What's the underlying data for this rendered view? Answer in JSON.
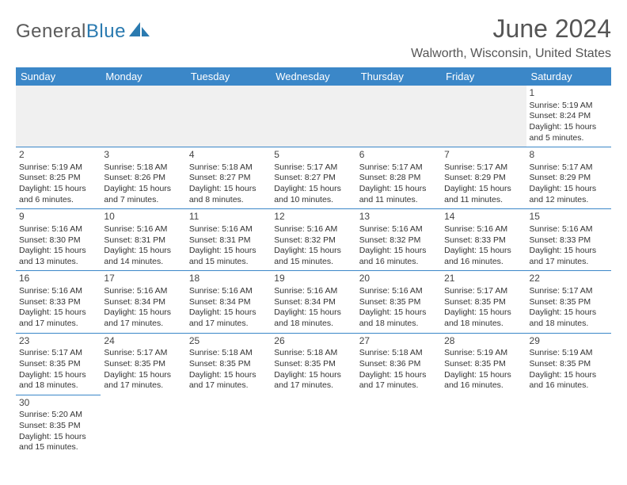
{
  "logo": {
    "text_a": "General",
    "text_b": "Blue",
    "icon_color": "#2a7ab0"
  },
  "header": {
    "title": "June 2024",
    "location": "Walworth, Wisconsin, United States",
    "title_color": "#555555",
    "title_fontsize": 32
  },
  "calendar": {
    "header_bg": "#3b87c8",
    "header_fg": "#ffffff",
    "border_color": "#3b87c8",
    "day_names": [
      "Sunday",
      "Monday",
      "Tuesday",
      "Wednesday",
      "Thursday",
      "Friday",
      "Saturday"
    ],
    "weeks": [
      [
        null,
        null,
        null,
        null,
        null,
        null,
        {
          "n": "1",
          "sr": "Sunrise: 5:19 AM",
          "ss": "Sunset: 8:24 PM",
          "dl1": "Daylight: 15 hours",
          "dl2": "and 5 minutes."
        }
      ],
      [
        {
          "n": "2",
          "sr": "Sunrise: 5:19 AM",
          "ss": "Sunset: 8:25 PM",
          "dl1": "Daylight: 15 hours",
          "dl2": "and 6 minutes."
        },
        {
          "n": "3",
          "sr": "Sunrise: 5:18 AM",
          "ss": "Sunset: 8:26 PM",
          "dl1": "Daylight: 15 hours",
          "dl2": "and 7 minutes."
        },
        {
          "n": "4",
          "sr": "Sunrise: 5:18 AM",
          "ss": "Sunset: 8:27 PM",
          "dl1": "Daylight: 15 hours",
          "dl2": "and 8 minutes."
        },
        {
          "n": "5",
          "sr": "Sunrise: 5:17 AM",
          "ss": "Sunset: 8:27 PM",
          "dl1": "Daylight: 15 hours",
          "dl2": "and 10 minutes."
        },
        {
          "n": "6",
          "sr": "Sunrise: 5:17 AM",
          "ss": "Sunset: 8:28 PM",
          "dl1": "Daylight: 15 hours",
          "dl2": "and 11 minutes."
        },
        {
          "n": "7",
          "sr": "Sunrise: 5:17 AM",
          "ss": "Sunset: 8:29 PM",
          "dl1": "Daylight: 15 hours",
          "dl2": "and 11 minutes."
        },
        {
          "n": "8",
          "sr": "Sunrise: 5:17 AM",
          "ss": "Sunset: 8:29 PM",
          "dl1": "Daylight: 15 hours",
          "dl2": "and 12 minutes."
        }
      ],
      [
        {
          "n": "9",
          "sr": "Sunrise: 5:16 AM",
          "ss": "Sunset: 8:30 PM",
          "dl1": "Daylight: 15 hours",
          "dl2": "and 13 minutes."
        },
        {
          "n": "10",
          "sr": "Sunrise: 5:16 AM",
          "ss": "Sunset: 8:31 PM",
          "dl1": "Daylight: 15 hours",
          "dl2": "and 14 minutes."
        },
        {
          "n": "11",
          "sr": "Sunrise: 5:16 AM",
          "ss": "Sunset: 8:31 PM",
          "dl1": "Daylight: 15 hours",
          "dl2": "and 15 minutes."
        },
        {
          "n": "12",
          "sr": "Sunrise: 5:16 AM",
          "ss": "Sunset: 8:32 PM",
          "dl1": "Daylight: 15 hours",
          "dl2": "and 15 minutes."
        },
        {
          "n": "13",
          "sr": "Sunrise: 5:16 AM",
          "ss": "Sunset: 8:32 PM",
          "dl1": "Daylight: 15 hours",
          "dl2": "and 16 minutes."
        },
        {
          "n": "14",
          "sr": "Sunrise: 5:16 AM",
          "ss": "Sunset: 8:33 PM",
          "dl1": "Daylight: 15 hours",
          "dl2": "and 16 minutes."
        },
        {
          "n": "15",
          "sr": "Sunrise: 5:16 AM",
          "ss": "Sunset: 8:33 PM",
          "dl1": "Daylight: 15 hours",
          "dl2": "and 17 minutes."
        }
      ],
      [
        {
          "n": "16",
          "sr": "Sunrise: 5:16 AM",
          "ss": "Sunset: 8:33 PM",
          "dl1": "Daylight: 15 hours",
          "dl2": "and 17 minutes."
        },
        {
          "n": "17",
          "sr": "Sunrise: 5:16 AM",
          "ss": "Sunset: 8:34 PM",
          "dl1": "Daylight: 15 hours",
          "dl2": "and 17 minutes."
        },
        {
          "n": "18",
          "sr": "Sunrise: 5:16 AM",
          "ss": "Sunset: 8:34 PM",
          "dl1": "Daylight: 15 hours",
          "dl2": "and 17 minutes."
        },
        {
          "n": "19",
          "sr": "Sunrise: 5:16 AM",
          "ss": "Sunset: 8:34 PM",
          "dl1": "Daylight: 15 hours",
          "dl2": "and 18 minutes."
        },
        {
          "n": "20",
          "sr": "Sunrise: 5:16 AM",
          "ss": "Sunset: 8:35 PM",
          "dl1": "Daylight: 15 hours",
          "dl2": "and 18 minutes."
        },
        {
          "n": "21",
          "sr": "Sunrise: 5:17 AM",
          "ss": "Sunset: 8:35 PM",
          "dl1": "Daylight: 15 hours",
          "dl2": "and 18 minutes."
        },
        {
          "n": "22",
          "sr": "Sunrise: 5:17 AM",
          "ss": "Sunset: 8:35 PM",
          "dl1": "Daylight: 15 hours",
          "dl2": "and 18 minutes."
        }
      ],
      [
        {
          "n": "23",
          "sr": "Sunrise: 5:17 AM",
          "ss": "Sunset: 8:35 PM",
          "dl1": "Daylight: 15 hours",
          "dl2": "and 18 minutes."
        },
        {
          "n": "24",
          "sr": "Sunrise: 5:17 AM",
          "ss": "Sunset: 8:35 PM",
          "dl1": "Daylight: 15 hours",
          "dl2": "and 17 minutes."
        },
        {
          "n": "25",
          "sr": "Sunrise: 5:18 AM",
          "ss": "Sunset: 8:35 PM",
          "dl1": "Daylight: 15 hours",
          "dl2": "and 17 minutes."
        },
        {
          "n": "26",
          "sr": "Sunrise: 5:18 AM",
          "ss": "Sunset: 8:35 PM",
          "dl1": "Daylight: 15 hours",
          "dl2": "and 17 minutes."
        },
        {
          "n": "27",
          "sr": "Sunrise: 5:18 AM",
          "ss": "Sunset: 8:36 PM",
          "dl1": "Daylight: 15 hours",
          "dl2": "and 17 minutes."
        },
        {
          "n": "28",
          "sr": "Sunrise: 5:19 AM",
          "ss": "Sunset: 8:35 PM",
          "dl1": "Daylight: 15 hours",
          "dl2": "and 16 minutes."
        },
        {
          "n": "29",
          "sr": "Sunrise: 5:19 AM",
          "ss": "Sunset: 8:35 PM",
          "dl1": "Daylight: 15 hours",
          "dl2": "and 16 minutes."
        }
      ],
      [
        {
          "n": "30",
          "sr": "Sunrise: 5:20 AM",
          "ss": "Sunset: 8:35 PM",
          "dl1": "Daylight: 15 hours",
          "dl2": "and 15 minutes."
        },
        null,
        null,
        null,
        null,
        null,
        null
      ]
    ]
  }
}
